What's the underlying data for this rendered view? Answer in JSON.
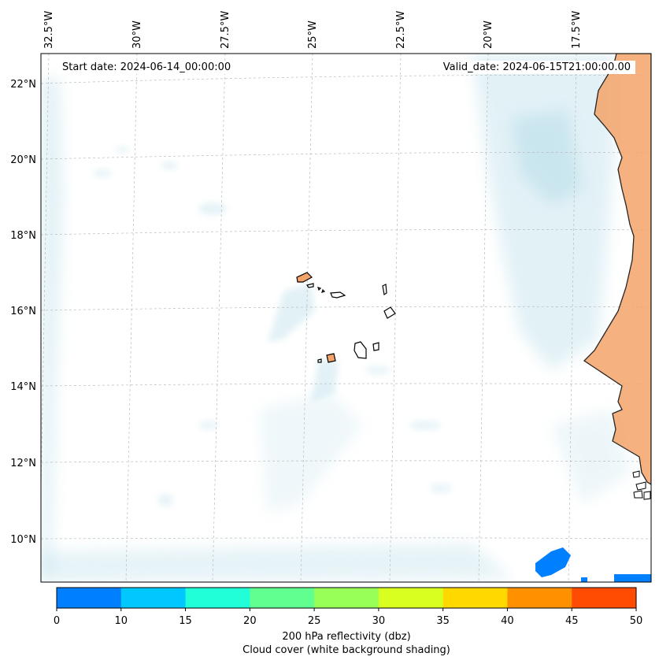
{
  "map": {
    "start_date": "Start date: 2024-06-14_00:00:00",
    "valid_date": "Valid_date: 2024-06-15T21:00:00.00",
    "lon_labels": [
      "32.5°W",
      "30°W",
      "27.5°W",
      "25°W",
      "22.5°W",
      "20°W",
      "17.5°W"
    ],
    "lat_labels": [
      "22°N",
      "20°N",
      "18°N",
      "16°N",
      "14°N",
      "12°N",
      "10°N"
    ],
    "colors": {
      "cloud": "#add8e6",
      "land": "#f4a46a",
      "coast": "#000000",
      "grid": "#bbbbbb"
    }
  },
  "colorbar": {
    "ticks": [
      "0",
      "10",
      "15",
      "20",
      "25",
      "30",
      "35",
      "40",
      "45",
      "50"
    ],
    "colors": [
      "#0080ff",
      "#00c8ff",
      "#20ffd8",
      "#60ff90",
      "#98ff58",
      "#d8ff20",
      "#ffd800",
      "#ff9000",
      "#ff4c00"
    ],
    "label": "200 hPa reflectivity (dbz)",
    "sublabel": "Cloud cover (white background shading)"
  }
}
